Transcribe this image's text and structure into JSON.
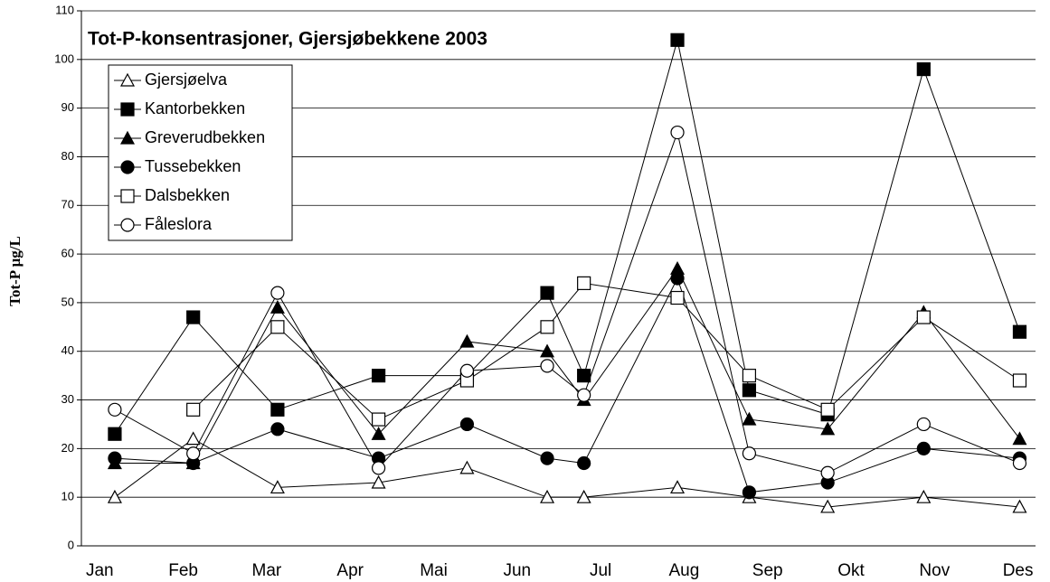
{
  "chart_data": {
    "type": "line",
    "title": "Tot-P-konsentrasjoner, Gjersjøbekkene 2003",
    "ylabel": "Tot-P µg/L",
    "x": [
      1.18,
      2.12,
      3.13,
      4.34,
      5.4,
      6.36,
      6.8,
      7.92,
      8.78,
      9.72,
      10.87,
      12.02
    ],
    "xlim": [
      0.78,
      12.21
    ],
    "xticks": [
      {
        "value": 1,
        "label": "Jan"
      },
      {
        "value": 2,
        "label": "Feb"
      },
      {
        "value": 3,
        "label": "Mar"
      },
      {
        "value": 4,
        "label": "Apr"
      },
      {
        "value": 5,
        "label": "Mai"
      },
      {
        "value": 6,
        "label": "Jun"
      },
      {
        "value": 7,
        "label": "Jul"
      },
      {
        "value": 8,
        "label": "Aug"
      },
      {
        "value": 9,
        "label": "Sep"
      },
      {
        "value": 10,
        "label": "Okt"
      },
      {
        "value": 11,
        "label": "Nov"
      },
      {
        "value": 12,
        "label": "Des"
      }
    ],
    "ylim": [
      0,
      110
    ],
    "yticks": [
      0,
      10,
      20,
      30,
      40,
      50,
      60,
      70,
      80,
      90,
      100,
      110
    ],
    "grid": true,
    "legend": "upper left",
    "series": [
      {
        "name": "Gjersjøelva",
        "color": "#000000",
        "marker": "triangle",
        "filled": false,
        "values": [
          10,
          22,
          12,
          13,
          16,
          10,
          10,
          12,
          10,
          8,
          10,
          8
        ]
      },
      {
        "name": "Kantorbekken",
        "color": "#000000",
        "marker": "square",
        "filled": true,
        "values": [
          23,
          47,
          28,
          35,
          35,
          52,
          35,
          104,
          32,
          27,
          98,
          44
        ]
      },
      {
        "name": "Greverudbekken",
        "color": "#000000",
        "marker": "triangle",
        "filled": true,
        "values": [
          17,
          17,
          49,
          23,
          42,
          40,
          30,
          57,
          26,
          24,
          48,
          22
        ]
      },
      {
        "name": "Tussebekken",
        "color": "#000000",
        "marker": "circle",
        "filled": true,
        "values": [
          18,
          17,
          24,
          18,
          25,
          18,
          17,
          55,
          11,
          13,
          20,
          18
        ]
      },
      {
        "name": "Dalsbekken",
        "color": "#000000",
        "marker": "square",
        "filled": false,
        "values": [
          null,
          28,
          45,
          26,
          34,
          45,
          54,
          51,
          35,
          28,
          47,
          34
        ]
      },
      {
        "name": "Fåleslora",
        "color": "#000000",
        "marker": "circle",
        "filled": false,
        "values": [
          28,
          19,
          52,
          16,
          36,
          37,
          31,
          85,
          19,
          15,
          25,
          17
        ]
      }
    ]
  }
}
